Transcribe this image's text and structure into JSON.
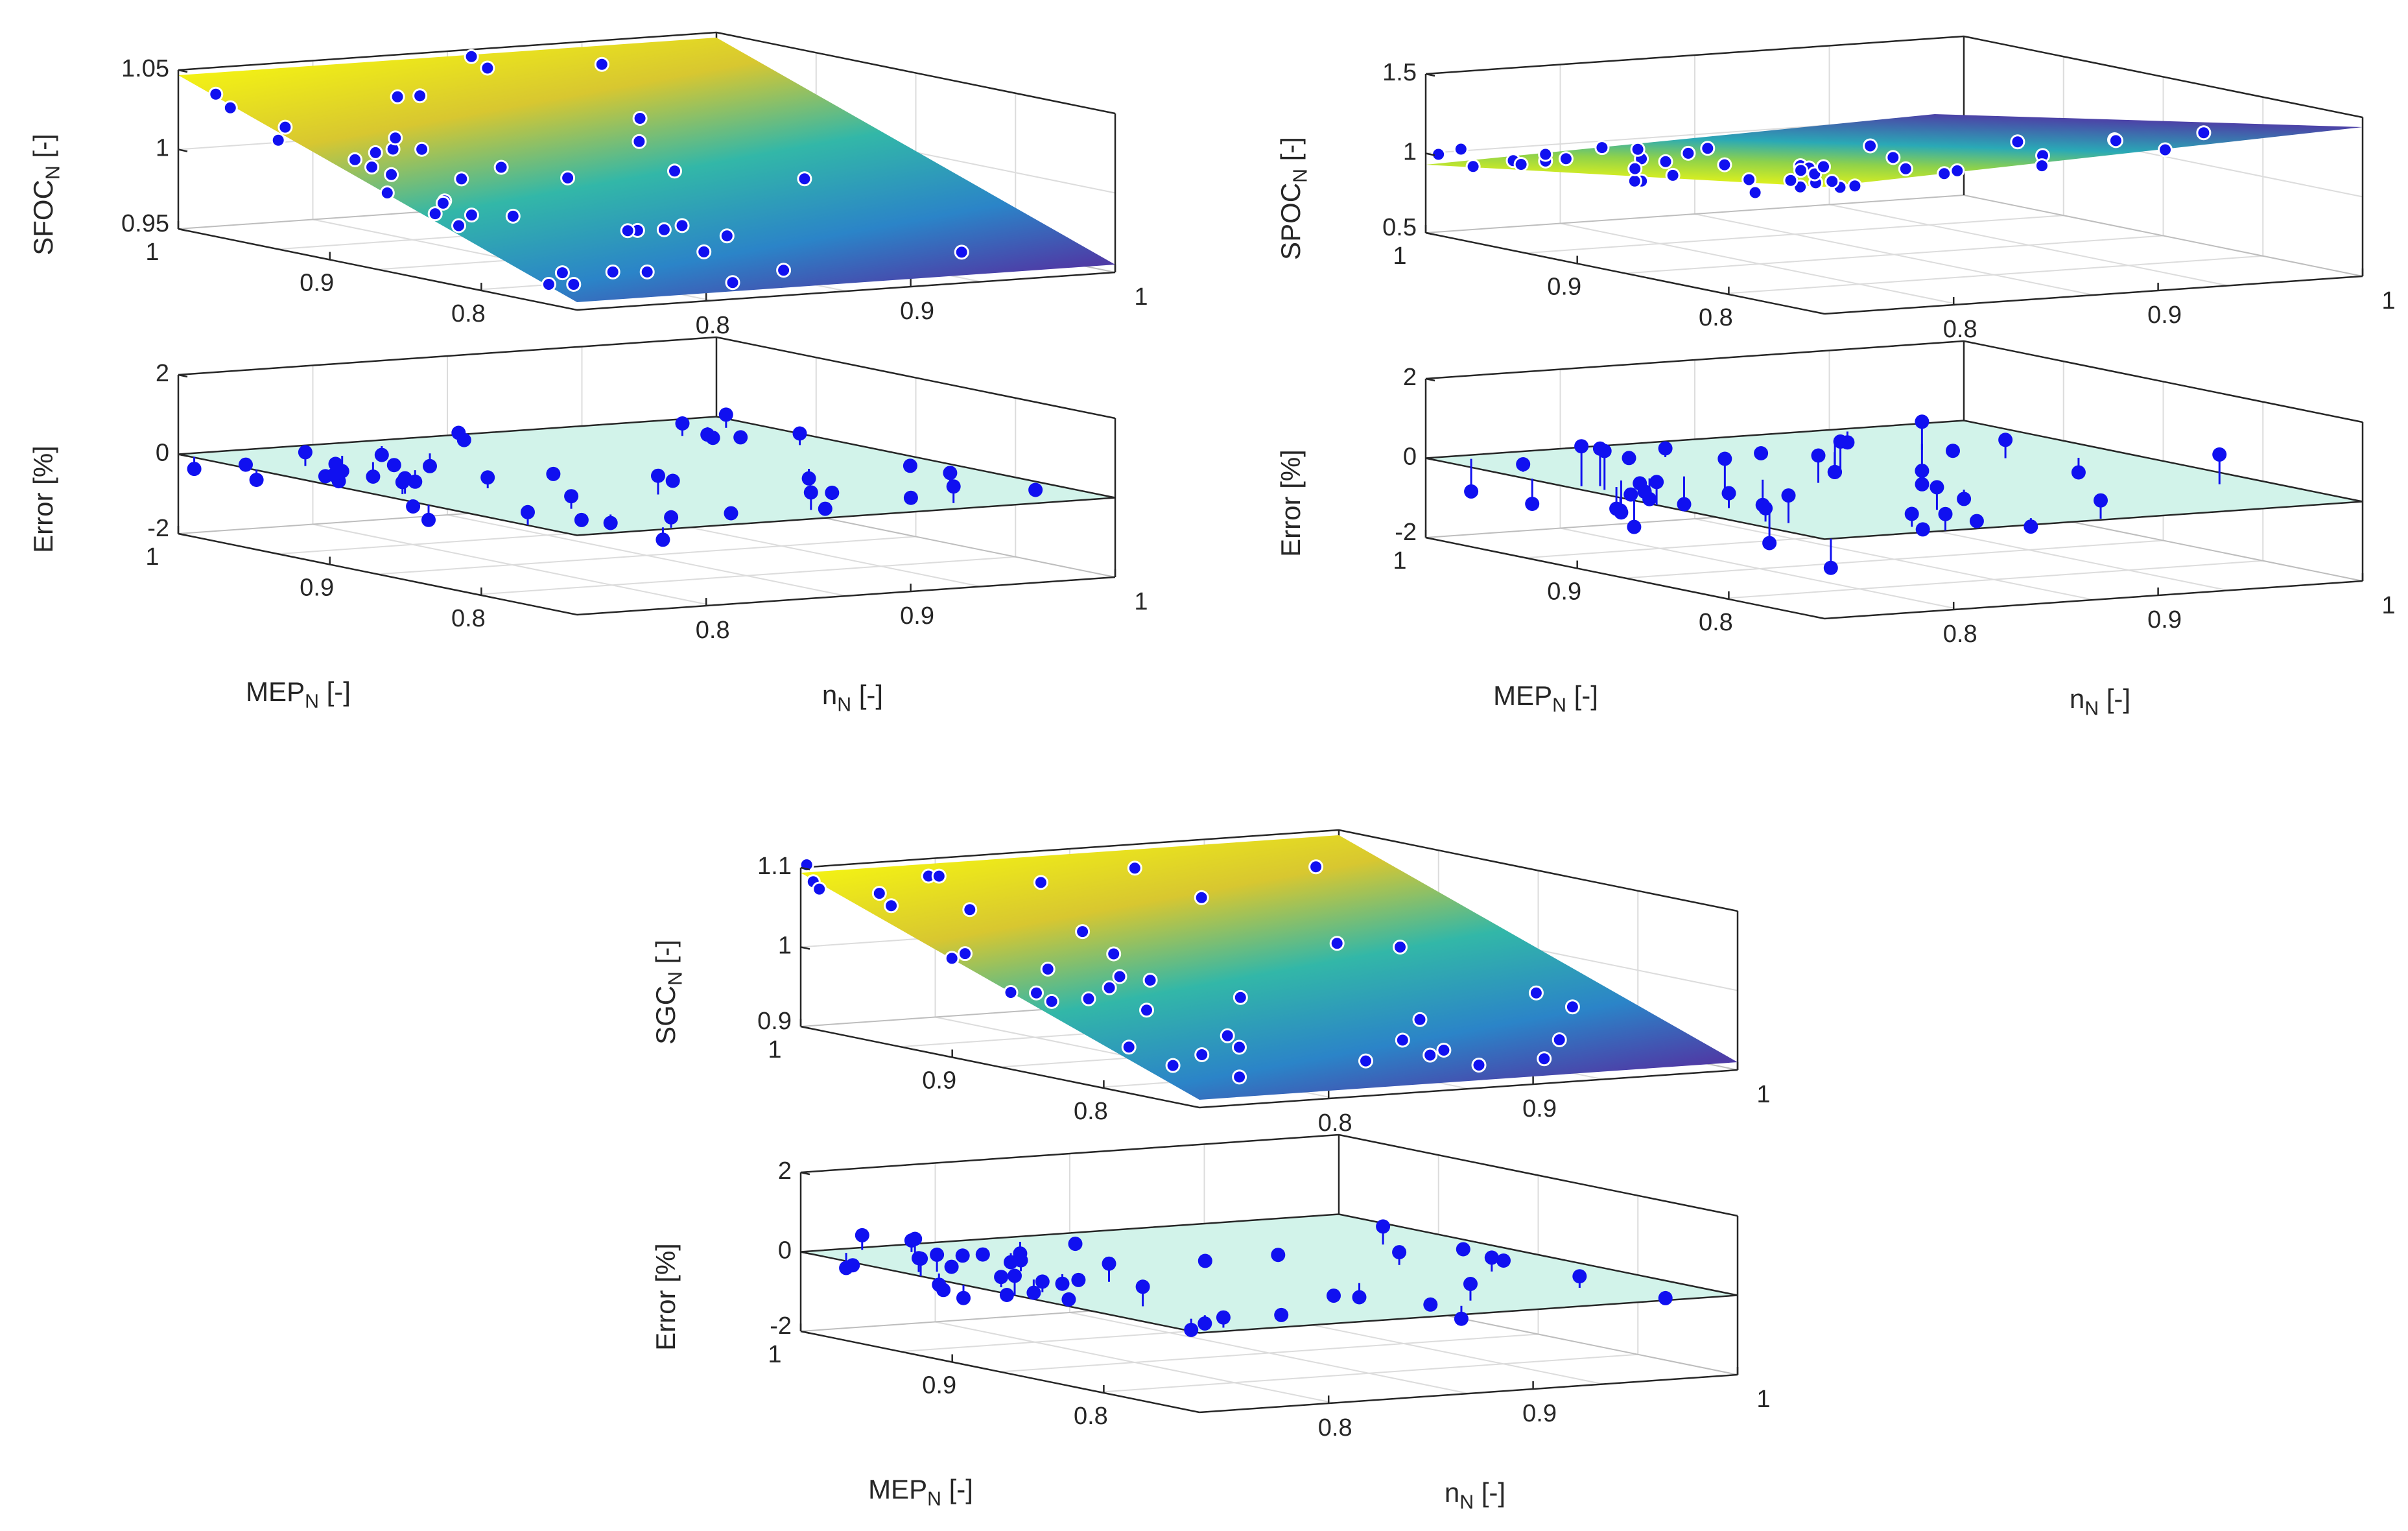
{
  "chart_data": [
    {
      "type": "surface3d",
      "zlabel_main": "SFOC",
      "zlabel_sub": "N",
      "zlabel_unit": "[-]",
      "zticks": [
        "0.95",
        "1",
        "1.05"
      ],
      "xticks": [
        "0.8",
        "0.9",
        "1"
      ],
      "yticks": [
        "1",
        "0.9",
        "0.8"
      ],
      "xlabel": "",
      "ylabel": "",
      "grid": true
    },
    {
      "type": "stem3d",
      "zlabel": "Error [%]",
      "zticks": [
        "-2",
        "0",
        "2"
      ],
      "xticks": [
        "0.8",
        "0.9",
        "1"
      ],
      "yticks": [
        "1",
        "0.9",
        "0.8"
      ],
      "xlabel_main": "n",
      "xlabel_sub": "N",
      "xlabel_unit": "[-]",
      "ylabel_main": "MEP",
      "ylabel_sub": "N",
      "ylabel_unit": "[-]",
      "grid": true
    },
    {
      "type": "surface3d",
      "zlabel_main": "SPOC",
      "zlabel_sub": "N",
      "zlabel_unit": "[-]",
      "zticks": [
        "0.5",
        "1",
        "1.5"
      ],
      "xticks": [
        "0.8",
        "0.9",
        "1"
      ],
      "yticks": [
        "1",
        "0.9",
        "0.8"
      ],
      "xlabel": "",
      "ylabel": "",
      "grid": true
    },
    {
      "type": "stem3d",
      "zlabel": "Error [%]",
      "zticks": [
        "-2",
        "0",
        "2"
      ],
      "xticks": [
        "0.8",
        "0.9",
        "1"
      ],
      "yticks": [
        "1",
        "0.9",
        "0.8"
      ],
      "xlabel_main": "n",
      "xlabel_sub": "N",
      "xlabel_unit": "[-]",
      "ylabel_main": "MEP",
      "ylabel_sub": "N",
      "ylabel_unit": "[-]",
      "grid": true
    },
    {
      "type": "surface3d",
      "zlabel_main": "SGC",
      "zlabel_sub": "N",
      "zlabel_unit": "[-]",
      "zticks": [
        "0.9",
        "1",
        "1.1"
      ],
      "xticks": [
        "0.8",
        "0.9",
        "1"
      ],
      "yticks": [
        "1",
        "0.9",
        "0.8"
      ],
      "xlabel": "",
      "ylabel": "",
      "grid": true
    },
    {
      "type": "stem3d",
      "zlabel": "Error [%]",
      "zticks": [
        "-2",
        "0",
        "2"
      ],
      "xticks": [
        "0.8",
        "0.9",
        "1"
      ],
      "yticks": [
        "1",
        "0.9",
        "0.8"
      ],
      "xlabel_main": "n",
      "xlabel_sub": "N",
      "xlabel_unit": "[-]",
      "ylabel_main": "MEP",
      "ylabel_sub": "N",
      "ylabel_unit": "[-]",
      "grid": true
    }
  ],
  "colors": {
    "marker": "#1010f0",
    "surface_high": "#f9fb0e",
    "surface_mid": "#28b8b2",
    "surface_low": "#4e3ca6",
    "error_plane": "#d2f3ea",
    "axis": "#262626",
    "grid": "#dcdcdc"
  }
}
